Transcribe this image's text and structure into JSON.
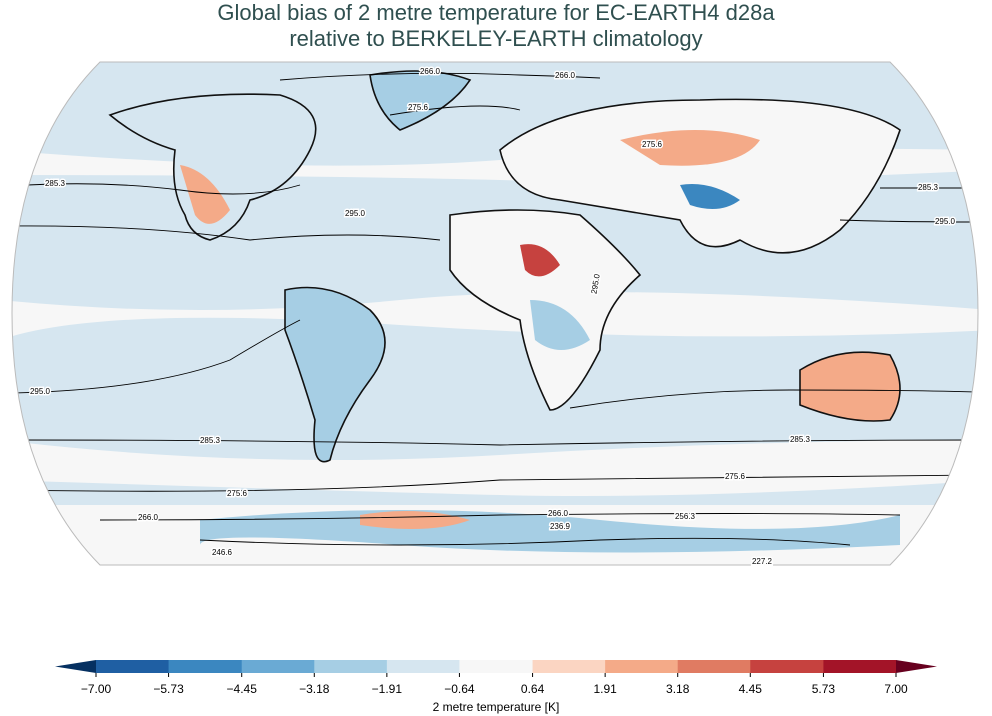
{
  "title_lines": [
    "Global bias of 2 metre temperature for EC-EARTH4 d28a",
    "relative to BERKELEY-EARTH climatology"
  ],
  "map": {
    "contour_labels": [
      "266.0",
      "266.0",
      "275.6",
      "275.6",
      "285.3",
      "285.3",
      "295.0",
      "295.0",
      "295.0",
      "295.0",
      "285.3",
      "285.3",
      "275.6",
      "275.6",
      "266.0",
      "266.0",
      "256.3",
      "246.6",
      "236.9",
      "227.2"
    ]
  },
  "colorbar": {
    "label": "2 metre temperature [K]",
    "lim": [
      -7,
      7
    ],
    "ticks": [
      {
        "value": -7,
        "label": "−7.00"
      },
      {
        "value": -5.73,
        "label": "−5.73"
      },
      {
        "value": -4.45,
        "label": "−4.45"
      },
      {
        "value": -3.18,
        "label": "−3.18"
      },
      {
        "value": -1.91,
        "label": "−1.91"
      },
      {
        "value": -0.64,
        "label": "−0.64"
      },
      0.64,
      1.91,
      3.18,
      4.45,
      5.73,
      {
        "value": 7,
        "label": "7.00"
      }
    ],
    "colors": [
      "#1f5fa3",
      "#3b87c0",
      "#6aaad4",
      "#a6cee4",
      "#d6e6f0",
      "#f7f7f7",
      "#fbd5c2",
      "#f4aa88",
      "#e07b62",
      "#c6423f",
      "#a31428"
    ],
    "extend_colors": [
      "#053061",
      "#67001f"
    ]
  }
}
